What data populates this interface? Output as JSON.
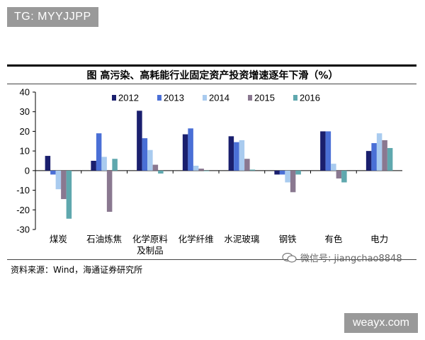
{
  "header_tag": "TG: MYYJJPP",
  "footer_tag": "weayx.com",
  "source_note": "资料来源：Wind，海通证券研究所",
  "watermark": {
    "label": "微信号: jiangchao8848",
    "icon": "wechat-icon"
  },
  "colors": {
    "2012": "#1a1f6e",
    "2013": "#4a6fd6",
    "2014": "#a9cbef",
    "2015": "#8a7890",
    "2016": "#5fa8ae"
  },
  "chart_data": {
    "type": "bar",
    "title": "图    高污染、高耗能行业固定资产投资增速逐年下滑（%）",
    "xlabel": "",
    "ylabel": "",
    "ylim": [
      -30,
      40
    ],
    "yticks": [
      -30,
      -20,
      -10,
      0,
      10,
      20,
      30,
      40
    ],
    "grid": false,
    "legend_position": "top-right",
    "categories": [
      [
        "煤炭"
      ],
      [
        "石油炼焦"
      ],
      [
        "化学原料",
        "及制品"
      ],
      [
        "化学纤维"
      ],
      [
        "水泥玻璃"
      ],
      [
        "钢铁"
      ],
      [
        "有色"
      ],
      [
        "电力"
      ]
    ],
    "series": [
      {
        "name": "2012",
        "values": [
          7.5,
          5,
          30.5,
          18.5,
          17.5,
          -2,
          20,
          10
        ]
      },
      {
        "name": "2013",
        "values": [
          -2,
          19,
          16.5,
          21.5,
          14.5,
          -2,
          20,
          14
        ]
      },
      {
        "name": "2014",
        "values": [
          -9.5,
          7,
          10.5,
          2.5,
          15.5,
          -6,
          3.5,
          19
        ]
      },
      {
        "name": "2015",
        "values": [
          -14.5,
          -21,
          3,
          1,
          6,
          -11,
          -4,
          15.5
        ]
      },
      {
        "name": "2016",
        "values": [
          -24.5,
          6,
          -1.5,
          0,
          0.5,
          -2,
          -6,
          11.5
        ]
      }
    ]
  }
}
